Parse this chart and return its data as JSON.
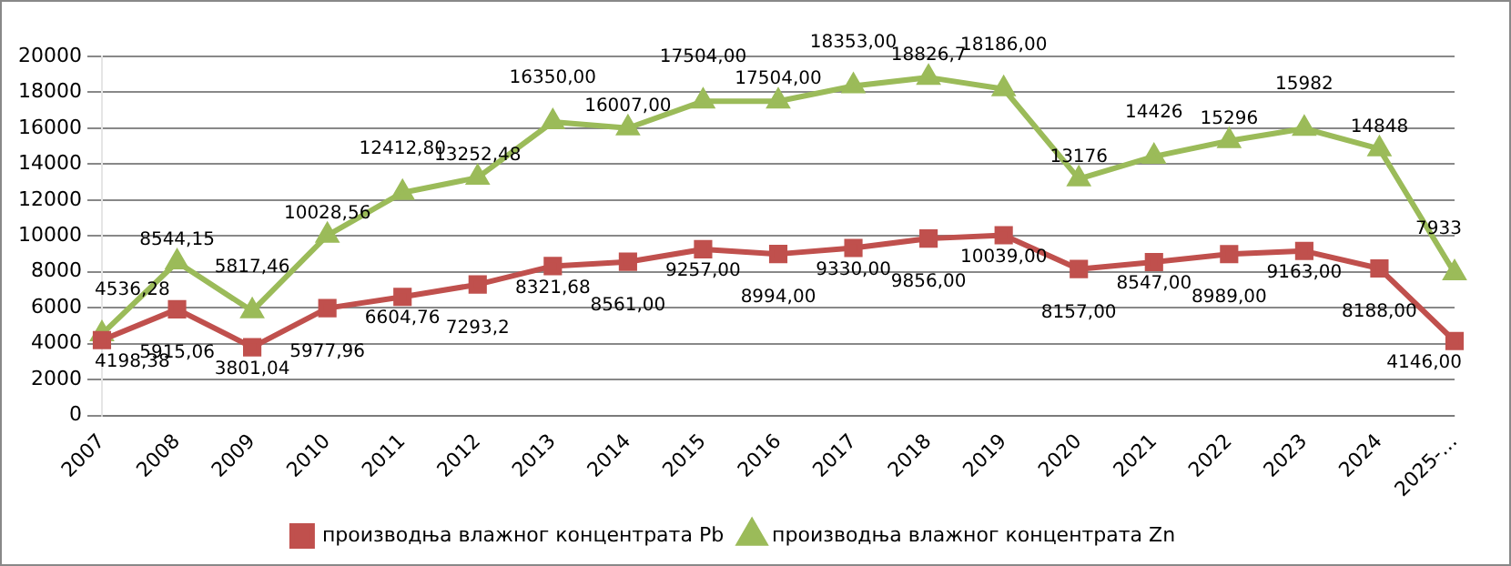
{
  "chart_data": {
    "type": "line",
    "categories": [
      "2007",
      "2008",
      "2009",
      "2010",
      "2011",
      "2012",
      "2013",
      "2014",
      "2015",
      "2016",
      "2017",
      "2018",
      "2019",
      "2020",
      "2021",
      "2022",
      "2023",
      "2024",
      "2025-…"
    ],
    "ylim": [
      0,
      20000
    ],
    "yticks": [
      0,
      2000,
      4000,
      6000,
      8000,
      10000,
      12000,
      14000,
      16000,
      18000,
      20000
    ],
    "grid": "y",
    "legend": "bottom",
    "data_labels": true,
    "series": [
      {
        "name": "производња влажног концентрата Pb",
        "color": "#c0504d",
        "marker": "square",
        "values": [
          4198.38,
          5915.06,
          3801.04,
          5977.96,
          6604.76,
          7293.2,
          8321.68,
          8561,
          9257,
          8994,
          9330,
          9856,
          10039,
          8157,
          8547,
          8989,
          9163,
          8188,
          4146
        ],
        "value_labels": [
          "4198,38",
          "5915,06",
          "3801,04",
          "5977,96",
          "6604,76",
          "7293,2",
          "8321,68",
          "8561,00",
          "9257,00",
          "8994,00",
          "9330,00",
          "9856,00",
          "10039,00",
          "8157,00",
          "8547,00",
          "8989,00",
          "9163,00",
          "8188,00",
          "4146,00"
        ]
      },
      {
        "name": "производња влажног концентрата Zn",
        "color": "#9bbb59",
        "marker": "triangle",
        "values": [
          4536.28,
          8544.15,
          5817.46,
          10028.56,
          12412.8,
          13252.48,
          16350,
          16007,
          17504,
          17504,
          18353,
          18826.7,
          18186,
          13176,
          14426,
          15296,
          15982,
          14848,
          7933
        ],
        "value_labels": [
          "4536,28",
          "8544,15",
          "5817,46",
          "10028,56",
          "12412,80",
          "13252,48",
          "16350,00",
          "16007,00",
          "17504,00",
          "17504,00",
          "18353,00",
          "18826,7",
          "18186,00",
          "13176",
          "14426",
          "15296",
          "15982",
          "14848",
          "7933"
        ]
      }
    ]
  }
}
